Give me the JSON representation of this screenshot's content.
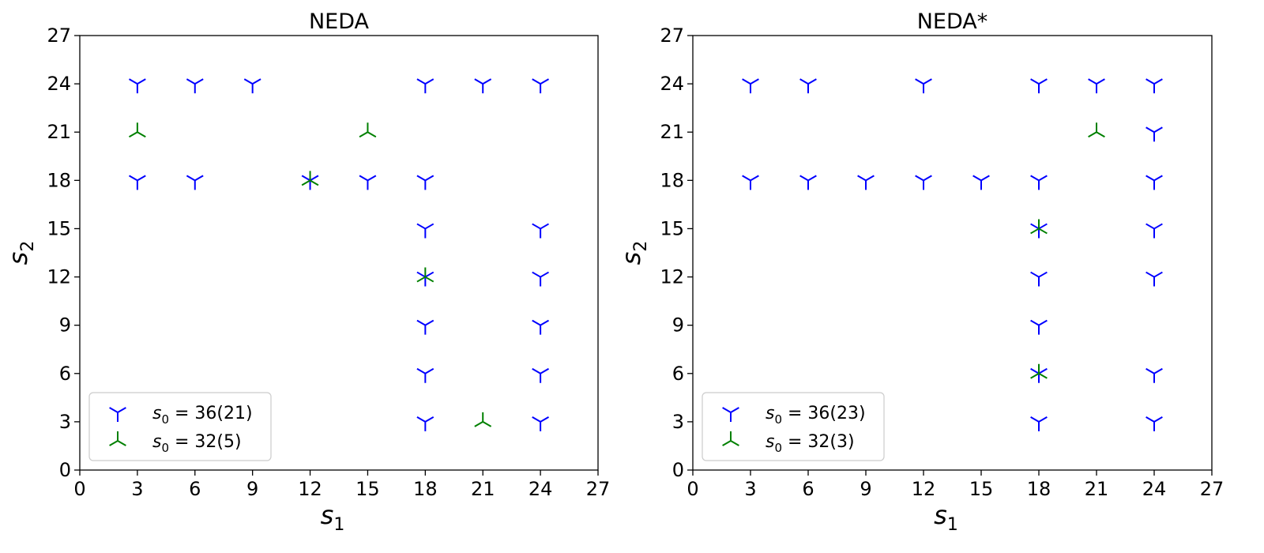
{
  "chart_data": [
    {
      "type": "scatter",
      "title": "NEDA",
      "xlabel": "s",
      "xlabel_sub": "1",
      "ylabel": "s",
      "ylabel_sub": "2",
      "xlim": [
        0,
        27
      ],
      "ylim": [
        0,
        27
      ],
      "xticks": [
        0,
        3,
        6,
        9,
        12,
        15,
        18,
        21,
        24,
        27
      ],
      "yticks": [
        0,
        3,
        6,
        9,
        12,
        15,
        18,
        21,
        24,
        27
      ],
      "legend_position": "lower-left",
      "series": [
        {
          "name": "s0 = 36(21)",
          "legend_prefix": "s",
          "legend_sub": "0",
          "legend_suffix": " = 36(21)",
          "marker": "tri_down",
          "color": "#0000ff",
          "points": [
            [
              3,
              24
            ],
            [
              6,
              24
            ],
            [
              9,
              24
            ],
            [
              18,
              24
            ],
            [
              21,
              24
            ],
            [
              24,
              24
            ],
            [
              3,
              18
            ],
            [
              6,
              18
            ],
            [
              12,
              18
            ],
            [
              15,
              18
            ],
            [
              18,
              18
            ],
            [
              18,
              15
            ],
            [
              24,
              15
            ],
            [
              18,
              12
            ],
            [
              24,
              12
            ],
            [
              18,
              9
            ],
            [
              24,
              9
            ],
            [
              18,
              6
            ],
            [
              24,
              6
            ],
            [
              18,
              3
            ],
            [
              24,
              3
            ]
          ]
        },
        {
          "name": "s0 = 32(5)",
          "legend_prefix": "s",
          "legend_sub": "0",
          "legend_suffix": " = 32(5)",
          "marker": "tri_up",
          "color": "#008000",
          "points": [
            [
              3,
              21
            ],
            [
              15,
              21
            ],
            [
              12,
              18
            ],
            [
              18,
              12
            ],
            [
              21,
              3
            ]
          ]
        }
      ]
    },
    {
      "type": "scatter",
      "title": "NEDA*",
      "xlabel": "s",
      "xlabel_sub": "1",
      "ylabel": "s",
      "ylabel_sub": "2",
      "xlim": [
        0,
        27
      ],
      "ylim": [
        0,
        27
      ],
      "xticks": [
        0,
        3,
        6,
        9,
        12,
        15,
        18,
        21,
        24,
        27
      ],
      "yticks": [
        0,
        3,
        6,
        9,
        12,
        15,
        18,
        21,
        24,
        27
      ],
      "legend_position": "lower-left",
      "series": [
        {
          "name": "s0 = 36(23)",
          "legend_prefix": "s",
          "legend_sub": "0",
          "legend_suffix": " = 36(23)",
          "marker": "tri_down",
          "color": "#0000ff",
          "points": [
            [
              3,
              24
            ],
            [
              6,
              24
            ],
            [
              12,
              24
            ],
            [
              18,
              24
            ],
            [
              21,
              24
            ],
            [
              24,
              24
            ],
            [
              24,
              21
            ],
            [
              3,
              18
            ],
            [
              6,
              18
            ],
            [
              9,
              18
            ],
            [
              12,
              18
            ],
            [
              15,
              18
            ],
            [
              18,
              18
            ],
            [
              24,
              18
            ],
            [
              18,
              15
            ],
            [
              24,
              15
            ],
            [
              18,
              12
            ],
            [
              24,
              12
            ],
            [
              18,
              9
            ],
            [
              18,
              6
            ],
            [
              24,
              6
            ],
            [
              18,
              3
            ],
            [
              24,
              3
            ]
          ]
        },
        {
          "name": "s0 = 32(3)",
          "legend_prefix": "s",
          "legend_sub": "0",
          "legend_suffix": " = 32(3)",
          "marker": "tri_up",
          "color": "#008000",
          "points": [
            [
              21,
              21
            ],
            [
              18,
              15
            ],
            [
              18,
              6
            ]
          ]
        }
      ]
    }
  ]
}
